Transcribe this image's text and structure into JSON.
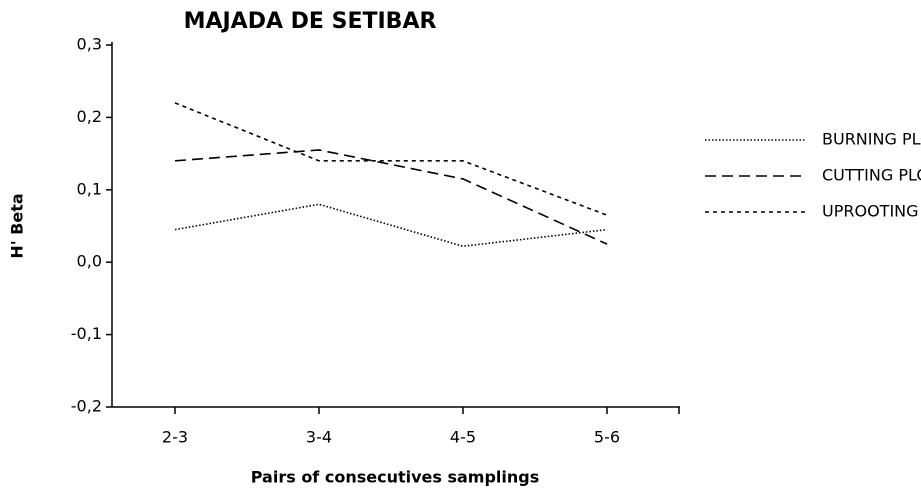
{
  "chart_data": {
    "type": "line",
    "title": "MAJADA  DE  SETIBAR",
    "x_label": "Pairs  of  consecutives  samplings",
    "y_label": "H' Beta",
    "categories": [
      "2-3",
      "3-4",
      "4-5",
      "5-6"
    ],
    "series": [
      {
        "name": "BURNING PLOT",
        "color": "#000000",
        "dash": "1.5,2",
        "values": [
          0.045,
          0.08,
          0.022,
          0.045
        ]
      },
      {
        "name": "CUTTING PLOT",
        "color": "#000000",
        "dash": "11,6",
        "values": [
          0.14,
          0.155,
          0.115,
          0.025
        ]
      },
      {
        "name": "UPROOTING PLOT",
        "color": "#000000",
        "dash": "4,4",
        "values": [
          0.22,
          0.14,
          0.14,
          0.065
        ]
      }
    ],
    "ylim": [
      -0.2,
      0.3
    ],
    "yticks": [
      {
        "value": -0.2,
        "label": "-0,2"
      },
      {
        "value": -0.1,
        "label": "-0,1"
      },
      {
        "value": 0,
        "label": "0,0"
      },
      {
        "value": 0.1,
        "label": "0,1"
      },
      {
        "value": 0.2,
        "label": "0,2"
      },
      {
        "value": 0.3,
        "label": "0,3"
      }
    ],
    "legend": "right"
  }
}
